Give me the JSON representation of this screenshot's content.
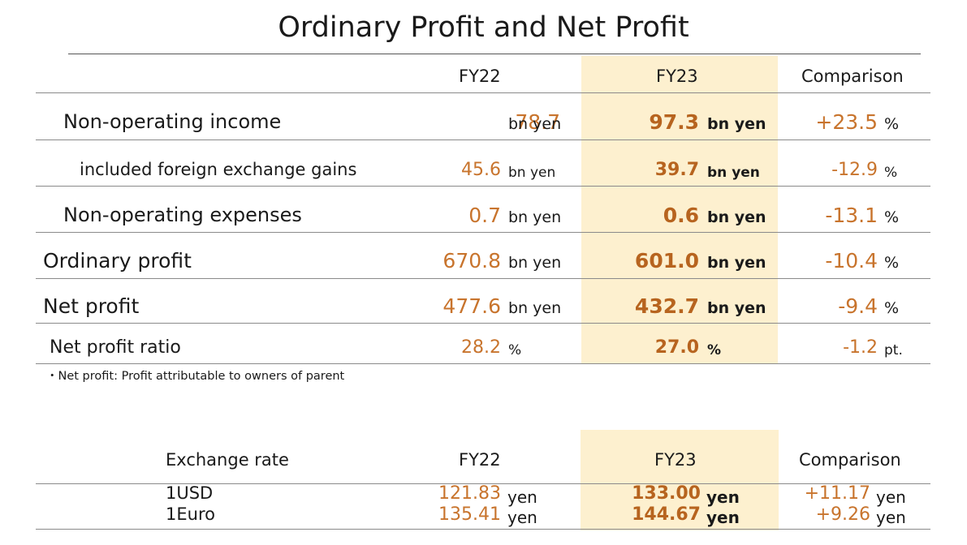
{
  "title": "Ordinary Profit and Net Profit",
  "colors": {
    "highlight": "#fdf0cf",
    "value": "#c8742d",
    "value_bold": "#b7641f",
    "text": "#1a1a1a"
  },
  "profit_table": {
    "headers": {
      "fy22": "FY22",
      "fy23": "FY23",
      "comparison": "Comparison"
    },
    "rows": [
      {
        "label": "Non-operating income",
        "fy22": "78.7",
        "fy22_unit": "bn yen",
        "fy23": "97.3",
        "fy23_unit": "bn yen",
        "cmp": "+23.5",
        "cmp_unit": "%"
      },
      {
        "label": "included foreign exchange gains",
        "fy22": "45.6",
        "fy22_unit": "bn yen",
        "fy23": "39.7",
        "fy23_unit": "bn yen",
        "cmp": "-12.9",
        "cmp_unit": "%"
      },
      {
        "label": "Non-operating expenses",
        "fy22": "0.7",
        "fy22_unit": "bn yen",
        "fy23": "0.6",
        "fy23_unit": "bn yen",
        "cmp": "-13.1",
        "cmp_unit": "%"
      },
      {
        "label": "Ordinary profit",
        "fy22": "670.8",
        "fy22_unit": "bn yen",
        "fy23": "601.0",
        "fy23_unit": "bn yen",
        "cmp": "-10.4",
        "cmp_unit": "%"
      },
      {
        "label": "Net profit",
        "fy22": "477.6",
        "fy22_unit": "bn yen",
        "fy23": "432.7",
        "fy23_unit": "bn yen",
        "cmp": "-9.4",
        "cmp_unit": "%"
      },
      {
        "label": "Net profit ratio",
        "fy22": "28.2",
        "fy22_unit": "%",
        "fy23": "27.0",
        "fy23_unit": "%",
        "cmp": "-1.2",
        "cmp_unit": "pt."
      }
    ],
    "footnote": "・Net profit: Profit attributable to owners of parent"
  },
  "exchange_table": {
    "headers": {
      "label": "Exchange rate",
      "fy22": "FY22",
      "fy23": "FY23",
      "comparison": "Comparison"
    },
    "rows": [
      {
        "label": "1USD",
        "fy22": "121.83",
        "fy22_unit": "yen",
        "fy23": "133.00",
        "fy23_unit": "yen",
        "cmp": "+11.17",
        "cmp_unit": "yen"
      },
      {
        "label": "1Euro",
        "fy22": "135.41",
        "fy22_unit": "yen",
        "fy23": "144.67",
        "fy23_unit": "yen",
        "cmp": "+9.26",
        "cmp_unit": "yen"
      }
    ]
  }
}
